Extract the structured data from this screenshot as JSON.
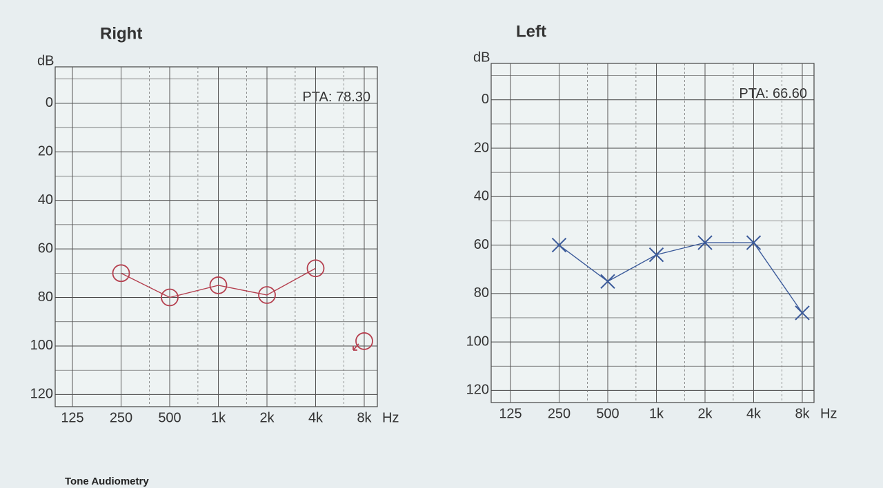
{
  "chart_data": [
    {
      "type": "audiogram",
      "title": "Right",
      "title_color": "#c0404f",
      "y_label": "dB",
      "x_unit": "Hz",
      "annotation": "PTA: 78.30",
      "categories": [
        "125",
        "250",
        "500",
        "1k",
        "2k",
        "4k",
        "8k"
      ],
      "series": [
        {
          "color": "#b5404f",
          "marker": "circle",
          "connected": true,
          "values": [
            null,
            70,
            80,
            75,
            79,
            68,
            null
          ]
        },
        {
          "color": "#b5404f",
          "marker": "circle-arrow",
          "connected": false,
          "values": [
            null,
            null,
            null,
            null,
            null,
            null,
            98
          ]
        }
      ],
      "ylim": [
        -15,
        125
      ],
      "yticks": [
        0,
        20,
        40,
        60,
        80,
        100,
        120
      ],
      "yminor": [
        -10,
        10,
        30,
        50,
        70,
        90,
        110
      ],
      "grid": true
    },
    {
      "type": "audiogram",
      "title": "Left",
      "title_color": "#3f5f9e",
      "y_label": "dB",
      "x_unit": "Hz",
      "annotation": "PTA: 66.60",
      "categories": [
        "125",
        "250",
        "500",
        "1k",
        "2k",
        "4k",
        "8k"
      ],
      "series": [
        {
          "color": "#3b5a9a",
          "marker": "cross",
          "connected": true,
          "values": [
            null,
            60,
            75,
            64,
            59,
            59,
            88
          ]
        }
      ],
      "ylim": [
        -15,
        125
      ],
      "yticks": [
        0,
        20,
        40,
        60,
        80,
        100,
        120
      ],
      "yminor": [
        -10,
        10,
        30,
        50,
        70,
        90,
        110
      ],
      "grid": true
    }
  ],
  "footer": "Tone Audiometry"
}
